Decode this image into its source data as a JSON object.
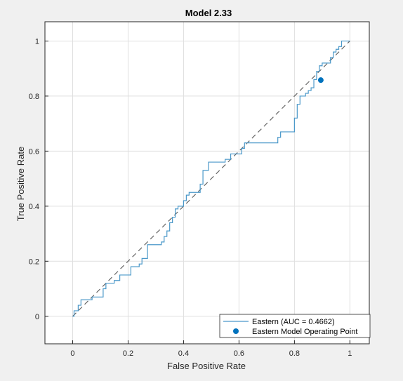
{
  "chart_data": {
    "type": "line",
    "title": "Model 2.33",
    "xlabel": "False Positive Rate",
    "ylabel": "True Positive Rate",
    "xlim": [
      -0.1,
      1.07
    ],
    "ylim": [
      -0.1,
      1.07
    ],
    "xticks": [
      0,
      0.2,
      0.4,
      0.6,
      0.8,
      1
    ],
    "yticks": [
      0,
      0.2,
      0.4,
      0.6,
      0.8,
      1
    ],
    "xtick_labels": [
      "0",
      "0.2",
      "0.4",
      "0.6",
      "0.8",
      "1"
    ],
    "ytick_labels": [
      "0",
      "0.2",
      "0.4",
      "0.6",
      "0.8",
      "1"
    ],
    "grid": true,
    "legend_position": "bottom-right",
    "series": [
      {
        "name": "Eastern (AUC = 0.4662)",
        "color": "#4a98c9",
        "x": [
          0,
          0.005,
          0.005,
          0.02,
          0.02,
          0.03,
          0.03,
          0.07,
          0.07,
          0.11,
          0.11,
          0.12,
          0.12,
          0.15,
          0.15,
          0.17,
          0.17,
          0.21,
          0.21,
          0.24,
          0.24,
          0.25,
          0.25,
          0.27,
          0.27,
          0.32,
          0.32,
          0.33,
          0.33,
          0.34,
          0.34,
          0.35,
          0.35,
          0.36,
          0.36,
          0.37,
          0.37,
          0.38,
          0.38,
          0.4,
          0.4,
          0.41,
          0.41,
          0.42,
          0.42,
          0.46,
          0.46,
          0.47,
          0.47,
          0.49,
          0.49,
          0.55,
          0.55,
          0.56,
          0.56,
          0.57,
          0.57,
          0.61,
          0.61,
          0.62,
          0.62,
          0.65,
          0.65,
          0.74,
          0.74,
          0.75,
          0.75,
          0.76,
          0.76,
          0.8,
          0.8,
          0.81,
          0.81,
          0.82,
          0.82,
          0.84,
          0.84,
          0.85,
          0.85,
          0.86,
          0.86,
          0.87,
          0.87,
          0.88,
          0.88,
          0.89,
          0.89,
          0.9,
          0.9,
          0.93,
          0.93,
          0.94,
          0.94,
          0.95,
          0.95,
          0.96,
          0.96,
          0.97,
          0.97,
          1
        ],
        "y": [
          0,
          0,
          0.02,
          0.02,
          0.04,
          0.04,
          0.06,
          0.06,
          0.07,
          0.07,
          0.1,
          0.1,
          0.12,
          0.12,
          0.13,
          0.13,
          0.15,
          0.15,
          0.18,
          0.18,
          0.19,
          0.19,
          0.21,
          0.21,
          0.26,
          0.26,
          0.27,
          0.27,
          0.29,
          0.29,
          0.31,
          0.31,
          0.34,
          0.34,
          0.36,
          0.36,
          0.39,
          0.39,
          0.4,
          0.4,
          0.42,
          0.42,
          0.44,
          0.44,
          0.45,
          0.45,
          0.48,
          0.48,
          0.53,
          0.53,
          0.56,
          0.56,
          0.57,
          0.57,
          0.57,
          0.57,
          0.59,
          0.59,
          0.61,
          0.61,
          0.63,
          0.63,
          0.63,
          0.63,
          0.65,
          0.65,
          0.67,
          0.67,
          0.67,
          0.67,
          0.72,
          0.72,
          0.77,
          0.77,
          0.8,
          0.8,
          0.81,
          0.81,
          0.82,
          0.82,
          0.83,
          0.83,
          0.86,
          0.86,
          0.89,
          0.89,
          0.91,
          0.91,
          0.92,
          0.92,
          0.94,
          0.94,
          0.96,
          0.96,
          0.97,
          0.97,
          0.98,
          0.98,
          1,
          1
        ]
      },
      {
        "name": "Eastern Model Operating Point",
        "color": "#0072bd",
        "marker": "circle",
        "x": [
          0.895
        ],
        "y": [
          0.858
        ]
      }
    ],
    "reference_line": {
      "x": [
        0,
        1
      ],
      "y": [
        0,
        1
      ],
      "style": "dashed",
      "color": "#666666"
    }
  }
}
